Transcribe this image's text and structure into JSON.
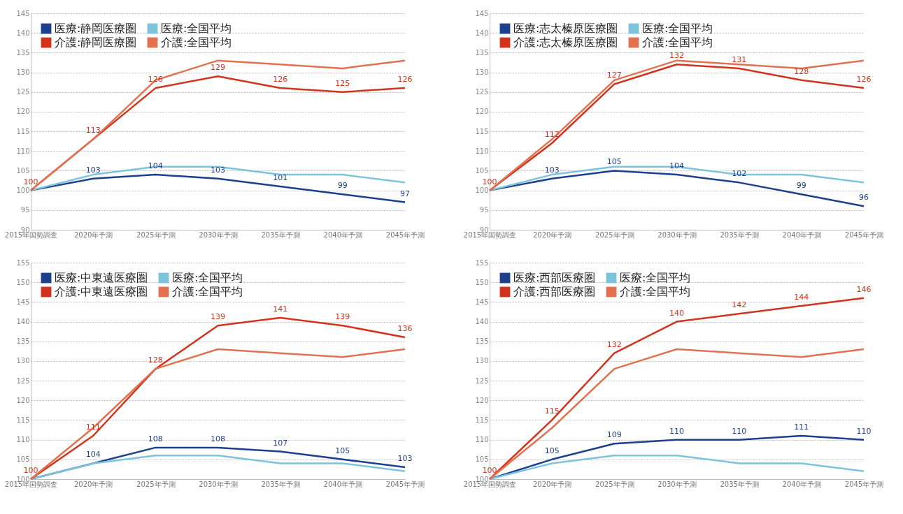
{
  "chart_data": [
    {
      "type": "line",
      "categories": [
        "2015年国勢調査",
        "2020年予測",
        "2025年予測",
        "2030年予測",
        "2035年予測",
        "2040年予測",
        "2045年予測"
      ],
      "ylim": [
        90,
        145
      ],
      "yticks": [
        90,
        95,
        100,
        105,
        110,
        115,
        120,
        125,
        130,
        135,
        140,
        145
      ],
      "grid": "y",
      "legend": "top left",
      "line_style": "solid",
      "series": [
        {
          "name": "医療:静岡医療圏",
          "color": "#1c3f8e",
          "values": [
            100,
            103,
            104,
            103,
            101,
            99,
            97
          ],
          "value_labels": [
            null,
            "103",
            "104",
            "103",
            "101",
            "99",
            "97"
          ]
        },
        {
          "name": "医療:全国平均",
          "color": "#7cc3dc",
          "values": [
            100,
            104,
            106,
            106,
            104,
            104,
            102
          ]
        },
        {
          "name": "介護:静岡医療圏",
          "color": "#d2331c",
          "values": [
            100,
            113,
            126,
            129,
            126,
            125,
            126
          ],
          "value_labels": [
            "100",
            "113",
            "126",
            "129",
            "126",
            "125",
            "126"
          ]
        },
        {
          "name": "介護:全国平均",
          "color": "#e2714f",
          "values": [
            100,
            113,
            128,
            133,
            132,
            131,
            133
          ]
        }
      ]
    },
    {
      "type": "line",
      "categories": [
        "2015年国勢調査",
        "2020年予測",
        "2025年予測",
        "2030年予測",
        "2035年予測",
        "2040年予測",
        "2045年予測"
      ],
      "ylim": [
        90,
        145
      ],
      "yticks": [
        90,
        95,
        100,
        105,
        110,
        115,
        120,
        125,
        130,
        135,
        140,
        145
      ],
      "grid": "y",
      "legend": "top left",
      "line_style": "solid",
      "series": [
        {
          "name": "医療:志太榛原医療圏",
          "color": "#1c3f8e",
          "values": [
            100,
            103,
            105,
            104,
            102,
            99,
            96
          ],
          "value_labels": [
            null,
            "103",
            "105",
            "104",
            "102",
            "99",
            "96"
          ]
        },
        {
          "name": "医療:全国平均",
          "color": "#7cc3dc",
          "values": [
            100,
            104,
            106,
            106,
            104,
            104,
            102
          ]
        },
        {
          "name": "介護:志太榛原医療圏",
          "color": "#d2331c",
          "values": [
            100,
            112,
            127,
            132,
            131,
            128,
            126
          ],
          "value_labels": [
            "100",
            "112",
            "127",
            "132",
            "131",
            "128",
            "126"
          ]
        },
        {
          "name": "介護:全国平均",
          "color": "#e2714f",
          "values": [
            100,
            113,
            128,
            133,
            132,
            131,
            133
          ]
        }
      ]
    },
    {
      "type": "line",
      "categories": [
        "2015年国勢調査",
        "2020年予測",
        "2025年予測",
        "2030年予測",
        "2035年予測",
        "2040年予測",
        "2045年予測"
      ],
      "ylim": [
        100,
        155
      ],
      "yticks": [
        100,
        105,
        110,
        115,
        120,
        125,
        130,
        135,
        140,
        145,
        150,
        155
      ],
      "grid": "y",
      "legend": "top left",
      "line_style": "solid",
      "series": [
        {
          "name": "医療:中東遠医療圏",
          "color": "#1c3f8e",
          "values": [
            100,
            104,
            108,
            108,
            107,
            105,
            103
          ],
          "value_labels": [
            null,
            "104",
            "108",
            "108",
            "107",
            "105",
            "103"
          ]
        },
        {
          "name": "医療:全国平均",
          "color": "#7cc3dc",
          "values": [
            100,
            104,
            106,
            106,
            104,
            104,
            102
          ]
        },
        {
          "name": "介護:中東遠医療圏",
          "color": "#d2331c",
          "values": [
            100,
            111,
            128,
            139,
            141,
            139,
            136
          ],
          "value_labels": [
            "100",
            "111",
            "128",
            "139",
            "141",
            "139",
            "136"
          ]
        },
        {
          "name": "介護:全国平均",
          "color": "#e2714f",
          "values": [
            100,
            113,
            128,
            133,
            132,
            131,
            133
          ]
        }
      ]
    },
    {
      "type": "line",
      "categories": [
        "2015年国勢調査",
        "2020年予測",
        "2025年予測",
        "2030年予測",
        "2035年予測",
        "2040年予測",
        "2045年予測"
      ],
      "ylim": [
        100,
        155
      ],
      "yticks": [
        100,
        105,
        110,
        115,
        120,
        125,
        130,
        135,
        140,
        145,
        150,
        155
      ],
      "grid": "y",
      "legend": "top left",
      "line_style": "solid",
      "series": [
        {
          "name": "医療:西部医療圏",
          "color": "#1c3f8e",
          "values": [
            100,
            105,
            109,
            110,
            110,
            111,
            110
          ],
          "value_labels": [
            null,
            "105",
            "109",
            "110",
            "110",
            "111",
            "110"
          ]
        },
        {
          "name": "医療:全国平均",
          "color": "#7cc3dc",
          "values": [
            100,
            104,
            106,
            106,
            104,
            104,
            102
          ]
        },
        {
          "name": "介護:西部医療圏",
          "color": "#d2331c",
          "values": [
            100,
            115,
            132,
            140,
            142,
            144,
            146
          ],
          "value_labels": [
            "100",
            "115",
            "132",
            "140",
            "142",
            "144",
            "146"
          ]
        },
        {
          "name": "介護:全国平均",
          "color": "#e2714f",
          "values": [
            100,
            113,
            128,
            133,
            132,
            131,
            133
          ]
        }
      ]
    }
  ]
}
